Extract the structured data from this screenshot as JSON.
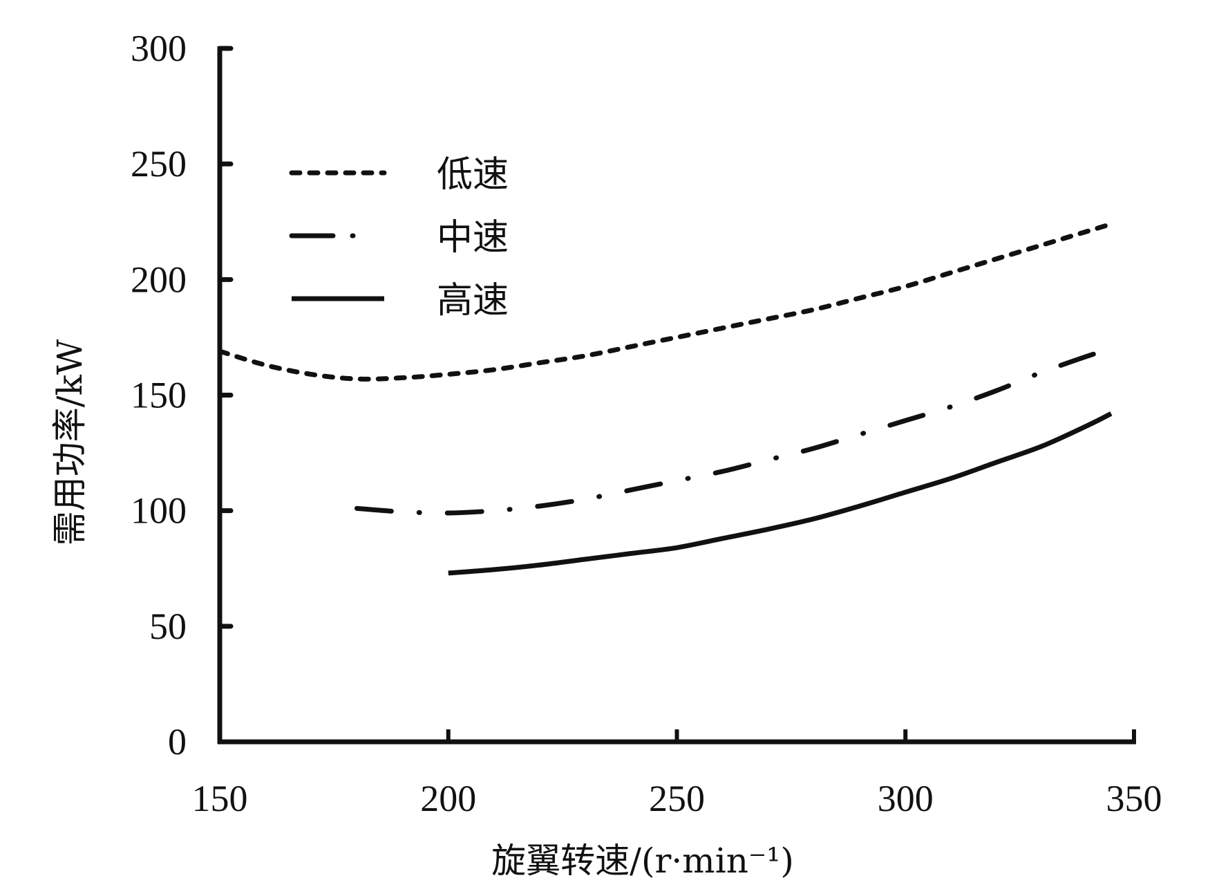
{
  "chart_data": {
    "type": "line",
    "title": "",
    "xlabel": "旋翼转速/(r·min⁻¹)",
    "ylabel": "需用功率/kW",
    "xlim": [
      150,
      350
    ],
    "ylim": [
      0,
      300
    ],
    "xticks": [
      "150",
      "200",
      "250",
      "300",
      "350"
    ],
    "yticks": [
      "0",
      "50",
      "100",
      "150",
      "200",
      "250",
      "300"
    ],
    "grid": false,
    "legend_position": "top-left",
    "series": [
      {
        "name": "低速",
        "style": "dotted",
        "x": [
          150,
          160,
          170,
          180,
          190,
          200,
          210,
          220,
          230,
          240,
          250,
          260,
          270,
          280,
          290,
          300,
          310,
          320,
          330,
          340,
          345
        ],
        "y": [
          169,
          163,
          159,
          157,
          157.5,
          159,
          161,
          164,
          167,
          171,
          175,
          179,
          183,
          187,
          192,
          197,
          203,
          209,
          215,
          221,
          224
        ]
      },
      {
        "name": "中速",
        "style": "dash-dot",
        "x": [
          180,
          190,
          200,
          210,
          220,
          230,
          240,
          250,
          260,
          270,
          280,
          290,
          300,
          310,
          320,
          330,
          340,
          345
        ],
        "y": [
          101,
          99.5,
          99,
          100,
          102,
          105,
          109,
          113,
          117,
          122,
          127,
          133,
          139,
          145,
          152,
          160,
          167,
          170
        ]
      },
      {
        "name": "高速",
        "style": "solid",
        "x": [
          200,
          210,
          220,
          230,
          240,
          250,
          260,
          270,
          280,
          290,
          300,
          310,
          320,
          330,
          340,
          345
        ],
        "y": [
          73,
          74.5,
          76.5,
          79,
          81.5,
          84,
          88,
          92,
          96.5,
          102,
          108,
          114,
          121,
          128,
          137,
          142
        ]
      }
    ],
    "colors": {
      "line": "#111111",
      "axis": "#111111"
    }
  }
}
